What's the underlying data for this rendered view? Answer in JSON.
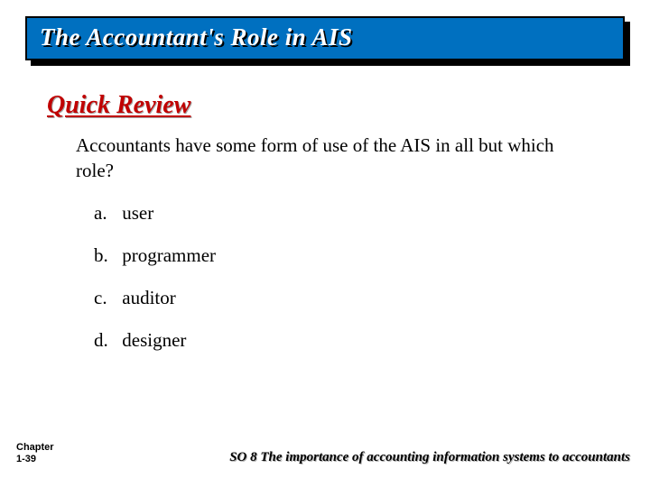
{
  "colors": {
    "title_bar_bg": "#0070c0",
    "title_bar_border": "#000000",
    "title_bar_shadow": "#000000",
    "title_text": "#ffffff",
    "title_text_shadow": "#000000",
    "section_heading": "#c00000",
    "body_text": "#000000",
    "background": "#ffffff"
  },
  "typography": {
    "title_fontsize": 27,
    "section_fontsize": 28,
    "body_fontsize": 21,
    "footer_left_fontsize": 11,
    "footer_right_fontsize": 15,
    "display_family": "Comic Sans MS",
    "footer_left_family": "Arial"
  },
  "title": "The Accountant's Role in AIS",
  "section": "Quick Review",
  "question": "Accountants have some form of use of the AIS in all but which role?",
  "options": [
    {
      "letter": "a.",
      "text": "user"
    },
    {
      "letter": "b.",
      "text": "programmer"
    },
    {
      "letter": "c.",
      "text": "auditor"
    },
    {
      "letter": "d.",
      "text": "designer"
    }
  ],
  "footer": {
    "chapter_label": "Chapter",
    "chapter_page": "1-39",
    "so_text": "SO 8  The importance of accounting information systems to accountants"
  }
}
